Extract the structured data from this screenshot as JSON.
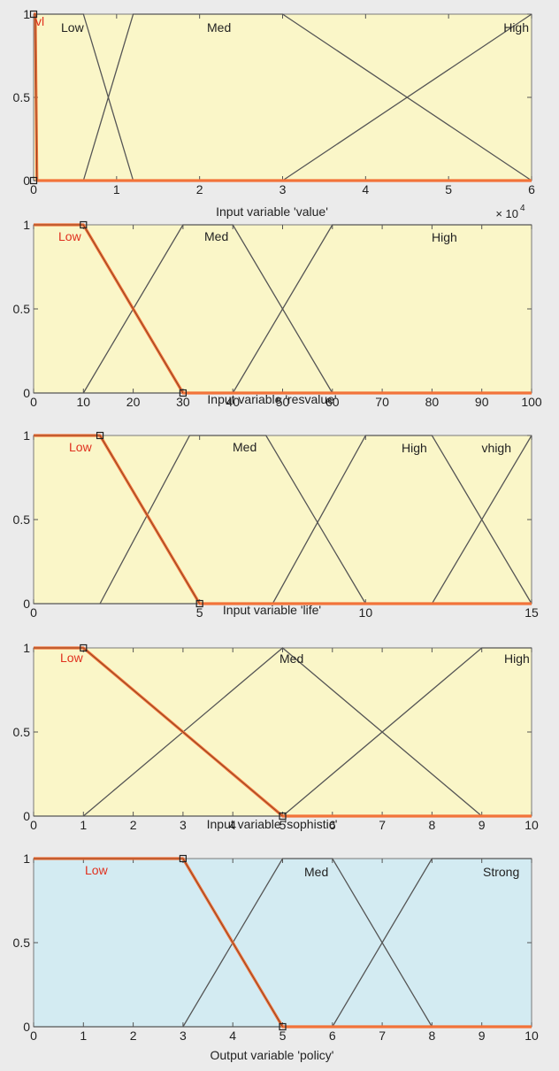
{
  "chart_data": [
    {
      "type": "line",
      "xlabel": "Input variable 'value'",
      "ylabel": "",
      "xlim": [
        0,
        60000
      ],
      "ylim": [
        0,
        1
      ],
      "x_ticks": [
        "0",
        "1",
        "2",
        "3",
        "4",
        "5",
        "6"
      ],
      "x_tick_values": [
        0,
        10000,
        20000,
        30000,
        40000,
        50000,
        60000
      ],
      "x_multiplier": "× 10",
      "x_multiplier_exp": "4",
      "y_ticks": [
        "0",
        "0.5",
        "1"
      ],
      "background": "#faf6c8",
      "highlighted_color": "#f2733a",
      "line_color": "#555555",
      "series": [
        {
          "name": "vl",
          "x": [
            0,
            200,
            400
          ],
          "y": [
            1,
            1,
            0
          ],
          "highlighted": true
        },
        {
          "name": "Low",
          "x": [
            0,
            6000,
            12000
          ],
          "y": [
            1,
            1,
            0
          ],
          "highlighted": false
        },
        {
          "name": "Med",
          "x": [
            6000,
            12000,
            30000,
            60000
          ],
          "y": [
            0,
            1,
            1,
            0
          ],
          "highlighted": false
        },
        {
          "name": "High",
          "x": [
            30000,
            60000
          ],
          "y": [
            0,
            1
          ],
          "highlighted": false
        }
      ],
      "markers": [
        {
          "x": 0,
          "y": 1
        },
        {
          "x": 0,
          "y": 0
        }
      ]
    },
    {
      "type": "line",
      "xlabel": "Input variable 'resvalue'",
      "ylabel": "",
      "xlim": [
        0,
        100
      ],
      "ylim": [
        0,
        1
      ],
      "x_ticks": [
        "0",
        "10",
        "20",
        "30",
        "40",
        "50",
        "60",
        "70",
        "80",
        "90",
        "100"
      ],
      "x_tick_values": [
        0,
        10,
        20,
        30,
        40,
        50,
        60,
        70,
        80,
        90,
        100
      ],
      "y_ticks": [
        "0",
        "0.5",
        "1"
      ],
      "background": "#faf6c8",
      "highlighted_color": "#f2733a",
      "line_color": "#555555",
      "series": [
        {
          "name": "Low",
          "x": [
            0,
            10,
            30
          ],
          "y": [
            1,
            1,
            0
          ],
          "highlighted": true
        },
        {
          "name": "Med",
          "x": [
            10,
            30,
            40,
            60
          ],
          "y": [
            0,
            1,
            1,
            0
          ],
          "highlighted": false
        },
        {
          "name": "High",
          "x": [
            40,
            60,
            100
          ],
          "y": [
            0,
            1,
            1
          ],
          "highlighted": false
        }
      ],
      "markers": [
        {
          "x": 10,
          "y": 1
        },
        {
          "x": 30,
          "y": 0
        }
      ]
    },
    {
      "type": "line",
      "xlabel": "Input variable 'life'",
      "ylabel": "",
      "xlim": [
        0,
        15
      ],
      "ylim": [
        0,
        1
      ],
      "x_ticks": [
        "0",
        "5",
        "10",
        "15"
      ],
      "x_tick_values": [
        0,
        5,
        10,
        15
      ],
      "y_ticks": [
        "0",
        "0.5",
        "1"
      ],
      "background": "#faf6c8",
      "highlighted_color": "#f2733a",
      "line_color": "#555555",
      "series": [
        {
          "name": "Low",
          "x": [
            0,
            2,
            5
          ],
          "y": [
            1,
            1,
            0
          ],
          "highlighted": true
        },
        {
          "name": "Med",
          "x": [
            2,
            4.7,
            7,
            10
          ],
          "y": [
            0,
            1,
            1,
            0
          ],
          "highlighted": false
        },
        {
          "name": "High",
          "x": [
            7.2,
            10,
            12,
            15
          ],
          "y": [
            0,
            1,
            1,
            0
          ],
          "highlighted": false
        },
        {
          "name": "vhigh",
          "x": [
            12,
            15
          ],
          "y": [
            0,
            1
          ],
          "highlighted": false
        }
      ],
      "markers": [
        {
          "x": 2,
          "y": 1
        },
        {
          "x": 5,
          "y": 0
        }
      ]
    },
    {
      "type": "line",
      "xlabel": "Input variable 'sophistic'",
      "ylabel": "",
      "xlim": [
        0,
        10
      ],
      "ylim": [
        0,
        1
      ],
      "x_ticks": [
        "0",
        "1",
        "2",
        "3",
        "4",
        "5",
        "6",
        "7",
        "8",
        "9",
        "10"
      ],
      "x_tick_values": [
        0,
        1,
        2,
        3,
        4,
        5,
        6,
        7,
        8,
        9,
        10
      ],
      "y_ticks": [
        "0",
        "0.5",
        "1"
      ],
      "background": "#faf6c8",
      "highlighted_color": "#f2733a",
      "line_color": "#555555",
      "series": [
        {
          "name": "Low",
          "x": [
            0,
            1,
            5
          ],
          "y": [
            1,
            1,
            0
          ],
          "highlighted": true
        },
        {
          "name": "Med",
          "x": [
            1,
            5,
            9
          ],
          "y": [
            0,
            1,
            0
          ],
          "highlighted": false
        },
        {
          "name": "High",
          "x": [
            5,
            9,
            10
          ],
          "y": [
            0,
            1,
            1
          ],
          "highlighted": false
        }
      ],
      "markers": [
        {
          "x": 1,
          "y": 1
        },
        {
          "x": 5,
          "y": 0
        }
      ]
    },
    {
      "type": "line",
      "xlabel": "Output variable 'policy'",
      "ylabel": "",
      "xlim": [
        0,
        10
      ],
      "ylim": [
        0,
        1
      ],
      "x_ticks": [
        "0",
        "1",
        "2",
        "3",
        "4",
        "5",
        "6",
        "7",
        "8",
        "9",
        "10"
      ],
      "x_tick_values": [
        0,
        1,
        2,
        3,
        4,
        5,
        6,
        7,
        8,
        9,
        10
      ],
      "y_ticks": [
        "0",
        "0.5",
        "1"
      ],
      "background": "#d3ebf2",
      "highlighted_color": "#f2733a",
      "line_color": "#555555",
      "series": [
        {
          "name": "Low",
          "x": [
            0,
            3,
            5
          ],
          "y": [
            1,
            1,
            0
          ],
          "highlighted": true
        },
        {
          "name": "Med",
          "x": [
            3,
            5,
            6,
            8
          ],
          "y": [
            0,
            1,
            1,
            0
          ],
          "highlighted": false
        },
        {
          "name": "Strong",
          "x": [
            6,
            8,
            10
          ],
          "y": [
            0,
            1,
            1
          ],
          "highlighted": false
        }
      ],
      "markers": [
        {
          "x": 3,
          "y": 1
        },
        {
          "x": 5,
          "y": 0
        }
      ]
    }
  ]
}
